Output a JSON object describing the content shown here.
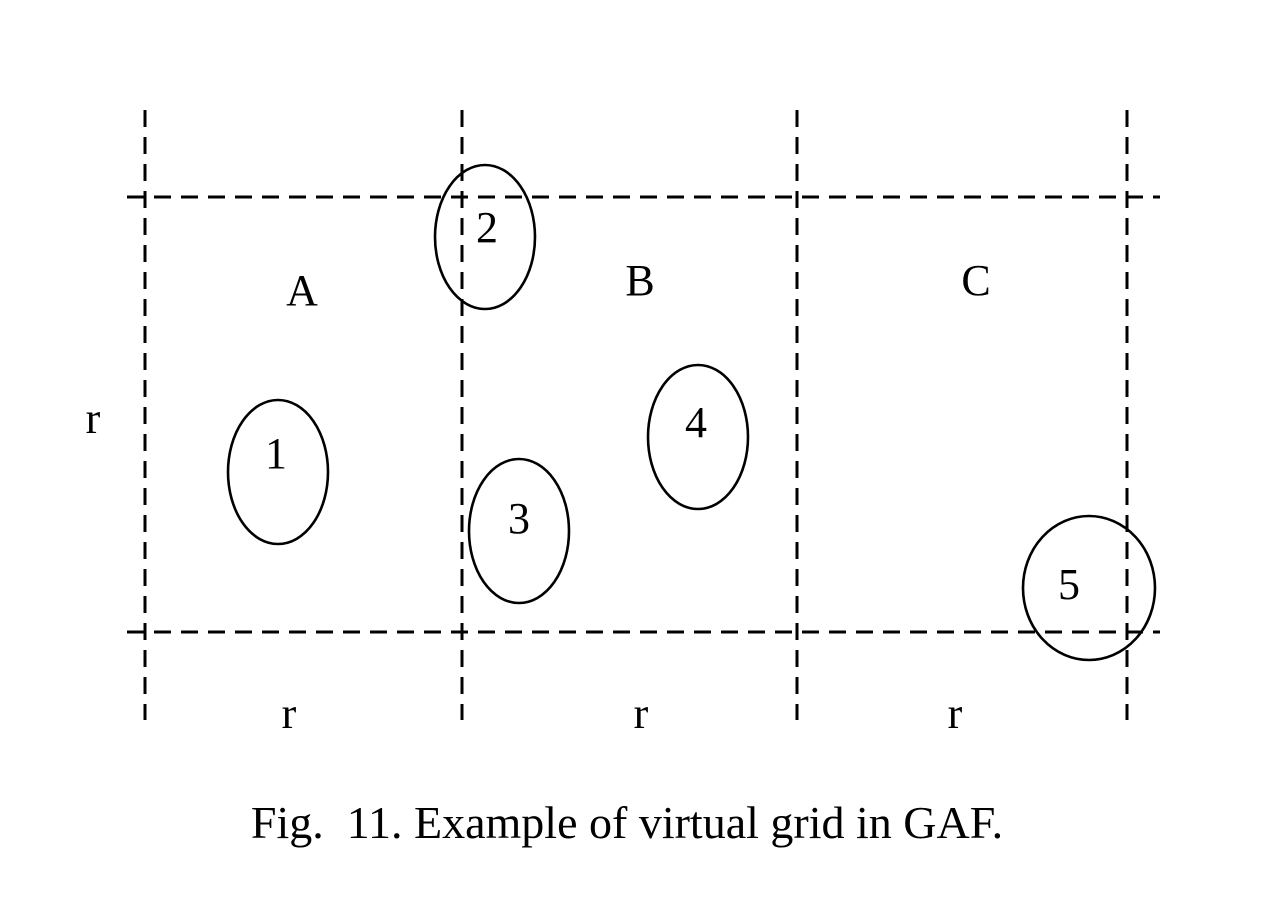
{
  "caption": "Fig.  11. Example of virtual grid in GAF.",
  "cells": [
    {
      "label": "A"
    },
    {
      "label": "B"
    },
    {
      "label": "C"
    }
  ],
  "dimension_labels": {
    "side": "r",
    "bottom": [
      "r",
      "r",
      "r"
    ]
  },
  "nodes": [
    {
      "label": "1"
    },
    {
      "label": "2"
    },
    {
      "label": "3"
    },
    {
      "label": "4"
    },
    {
      "label": "5"
    }
  ]
}
